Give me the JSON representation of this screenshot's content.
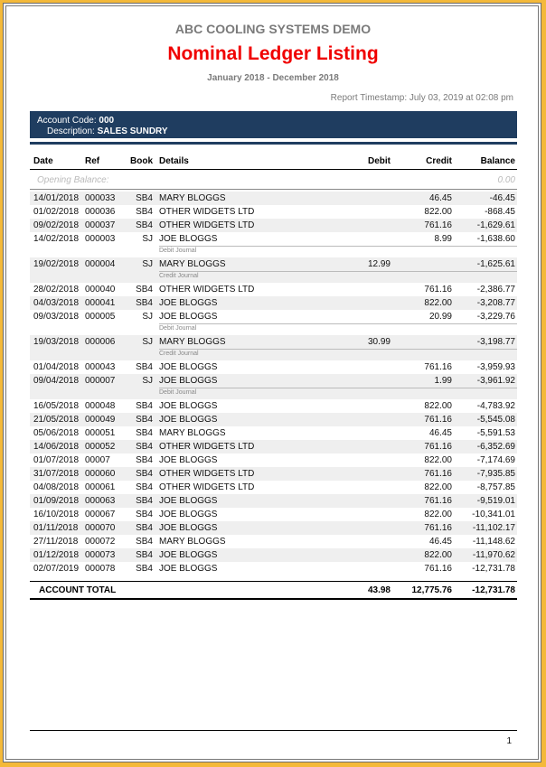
{
  "report": {
    "company": "ABC COOLING SYSTEMS DEMO",
    "title": "Nominal Ledger Listing",
    "period": "January 2018 - December 2018",
    "timestamp": "Report Timestamp: July 03, 2019 at 02:08 pm",
    "page_number": "1"
  },
  "account": {
    "code_label": "Account Code:",
    "code": "000",
    "description_label": "Description:",
    "description": "SALES SUNDRY"
  },
  "columns": {
    "date": "Date",
    "ref": "Ref",
    "book": "Book",
    "details": "Details",
    "debit": "Debit",
    "credit": "Credit",
    "balance": "Balance"
  },
  "opening": {
    "label": "Opening Balance:",
    "balance": "0.00"
  },
  "rows": [
    {
      "date": "14/01/2018",
      "ref": "000033",
      "book": "SB4",
      "details": "MARY BLOGGS",
      "debit": "",
      "credit": "46.45",
      "balance": "-46.45"
    },
    {
      "date": "01/02/2018",
      "ref": "000036",
      "book": "SB4",
      "details": "OTHER WIDGETS LTD",
      "debit": "",
      "credit": "822.00",
      "balance": "-868.45"
    },
    {
      "date": "09/02/2018",
      "ref": "000037",
      "book": "SB4",
      "details": "OTHER WIDGETS LTD",
      "debit": "",
      "credit": "761.16",
      "balance": "-1,629.61"
    },
    {
      "date": "14/02/2018",
      "ref": "000003",
      "book": "SJ",
      "details": "JOE BLOGGS",
      "debit": "",
      "credit": "8.99",
      "balance": "-1,638.60",
      "note": "Debit Journal"
    },
    {
      "date": "19/02/2018",
      "ref": "000004",
      "book": "SJ",
      "details": "MARY BLOGGS",
      "debit": "12.99",
      "credit": "",
      "balance": "-1,625.61",
      "note": "Credit Journal"
    },
    {
      "date": "28/02/2018",
      "ref": "000040",
      "book": "SB4",
      "details": "OTHER WIDGETS LTD",
      "debit": "",
      "credit": "761.16",
      "balance": "-2,386.77"
    },
    {
      "date": "04/03/2018",
      "ref": "000041",
      "book": "SB4",
      "details": "JOE BLOGGS",
      "debit": "",
      "credit": "822.00",
      "balance": "-3,208.77"
    },
    {
      "date": "09/03/2018",
      "ref": "000005",
      "book": "SJ",
      "details": "JOE BLOGGS",
      "debit": "",
      "credit": "20.99",
      "balance": "-3,229.76",
      "note": "Debit Journal"
    },
    {
      "date": "19/03/2018",
      "ref": "000006",
      "book": "SJ",
      "details": "MARY BLOGGS",
      "debit": "30.99",
      "credit": "",
      "balance": "-3,198.77",
      "note": "Credit Journal"
    },
    {
      "date": "01/04/2018",
      "ref": "000043",
      "book": "SB4",
      "details": "JOE BLOGGS",
      "debit": "",
      "credit": "761.16",
      "balance": "-3,959.93"
    },
    {
      "date": "09/04/2018",
      "ref": "000007",
      "book": "SJ",
      "details": "JOE BLOGGS",
      "debit": "",
      "credit": "1.99",
      "balance": "-3,961.92",
      "note": "Debit Journal"
    },
    {
      "date": "16/05/2018",
      "ref": "000048",
      "book": "SB4",
      "details": "JOE BLOGGS",
      "debit": "",
      "credit": "822.00",
      "balance": "-4,783.92"
    },
    {
      "date": "21/05/2018",
      "ref": "000049",
      "book": "SB4",
      "details": "JOE BLOGGS",
      "debit": "",
      "credit": "761.16",
      "balance": "-5,545.08"
    },
    {
      "date": "05/06/2018",
      "ref": "000051",
      "book": "SB4",
      "details": "MARY BLOGGS",
      "debit": "",
      "credit": "46.45",
      "balance": "-5,591.53"
    },
    {
      "date": "14/06/2018",
      "ref": "000052",
      "book": "SB4",
      "details": "OTHER WIDGETS LTD",
      "debit": "",
      "credit": "761.16",
      "balance": "-6,352.69"
    },
    {
      "date": "01/07/2018",
      "ref": "00007",
      "book": "SB4",
      "details": "JOE BLOGGS",
      "debit": "",
      "credit": "822.00",
      "balance": "-7,174.69"
    },
    {
      "date": "31/07/2018",
      "ref": "000060",
      "book": "SB4",
      "details": "OTHER WIDGETS LTD",
      "debit": "",
      "credit": "761.16",
      "balance": "-7,935.85"
    },
    {
      "date": "04/08/2018",
      "ref": "000061",
      "book": "SB4",
      "details": "OTHER WIDGETS LTD",
      "debit": "",
      "credit": "822.00",
      "balance": "-8,757.85"
    },
    {
      "date": "01/09/2018",
      "ref": "000063",
      "book": "SB4",
      "details": "JOE BLOGGS",
      "debit": "",
      "credit": "761.16",
      "balance": "-9,519.01"
    },
    {
      "date": "16/10/2018",
      "ref": "000067",
      "book": "SB4",
      "details": "JOE BLOGGS",
      "debit": "",
      "credit": "822.00",
      "balance": "-10,341.01"
    },
    {
      "date": "01/11/2018",
      "ref": "000070",
      "book": "SB4",
      "details": "JOE BLOGGS",
      "debit": "",
      "credit": "761.16",
      "balance": "-11,102.17"
    },
    {
      "date": "27/11/2018",
      "ref": "000072",
      "book": "SB4",
      "details": "MARY BLOGGS",
      "debit": "",
      "credit": "46.45",
      "balance": "-11,148.62"
    },
    {
      "date": "01/12/2018",
      "ref": "000073",
      "book": "SB4",
      "details": "JOE BLOGGS",
      "debit": "",
      "credit": "822.00",
      "balance": "-11,970.62"
    },
    {
      "date": "02/07/2019",
      "ref": "000078",
      "book": "SB4",
      "details": "JOE BLOGGS",
      "debit": "",
      "credit": "761.16",
      "balance": "-12,731.78"
    }
  ],
  "total": {
    "label": "ACCOUNT TOTAL",
    "debit": "43.98",
    "credit": "12,775.76",
    "balance": "-12,731.78"
  },
  "colors": {
    "title": "#f00000",
    "band": "#1f3d60",
    "border": "#f4b93a",
    "stripe": "#efefef"
  }
}
